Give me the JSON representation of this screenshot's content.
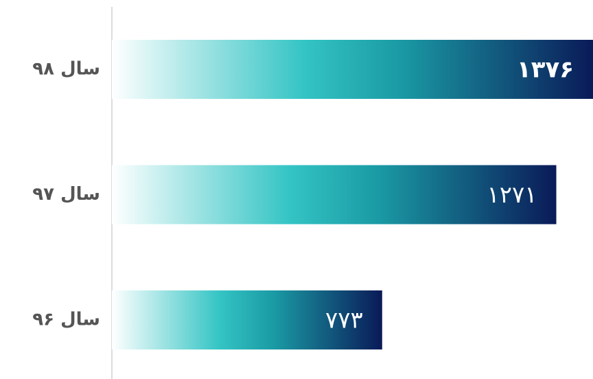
{
  "chart_data": {
    "type": "hbar",
    "categories": [
      "سال ۹۸",
      "سال ۹۷",
      "سال ۹۶"
    ],
    "values": [
      1376,
      1271,
      773
    ],
    "value_labels": [
      "۱۳۷۶",
      "۱۲۷۱",
      "۷۷۳"
    ],
    "gradient": [
      "#ffffff",
      "#34c4c4",
      "#1a9aa4",
      "#0a1a58"
    ]
  }
}
